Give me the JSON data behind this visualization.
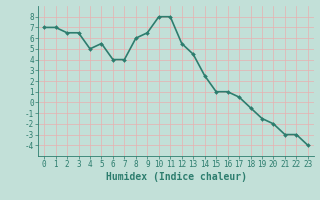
{
  "x": [
    0,
    1,
    2,
    3,
    4,
    5,
    6,
    7,
    8,
    9,
    10,
    11,
    12,
    13,
    14,
    15,
    16,
    17,
    18,
    19,
    20,
    21,
    22,
    23
  ],
  "y": [
    7,
    7,
    6.5,
    6.5,
    5,
    5.5,
    4,
    4,
    6,
    6.5,
    8,
    8,
    5.5,
    4.5,
    2.5,
    1,
    1,
    0.5,
    -0.5,
    -1.5,
    -2,
    -3,
    -3,
    -4
  ],
  "line_color": "#2d7d6e",
  "marker": "D",
  "marker_size": 2,
  "bg_color": "#c2e0d8",
  "major_grid_color": "#e8b0b0",
  "minor_grid_color": "#d8c8c8",
  "xlabel": "Humidex (Indice chaleur)",
  "xlabel_fontsize": 7,
  "xlim": [
    -0.5,
    23.5
  ],
  "ylim": [
    -5,
    9
  ],
  "yticks": [
    -4,
    -3,
    -2,
    -1,
    0,
    1,
    2,
    3,
    4,
    5,
    6,
    7,
    8
  ],
  "ytick_labels": [
    "-4",
    "-3",
    "-2",
    "-1",
    "0",
    "1",
    "2",
    "3",
    "4",
    "5",
    "6",
    "7",
    "8"
  ],
  "xticks": [
    0,
    1,
    2,
    3,
    4,
    5,
    6,
    7,
    8,
    9,
    10,
    11,
    12,
    13,
    14,
    15,
    16,
    17,
    18,
    19,
    20,
    21,
    22,
    23
  ],
  "tick_fontsize": 5.5,
  "linewidth": 1.2
}
